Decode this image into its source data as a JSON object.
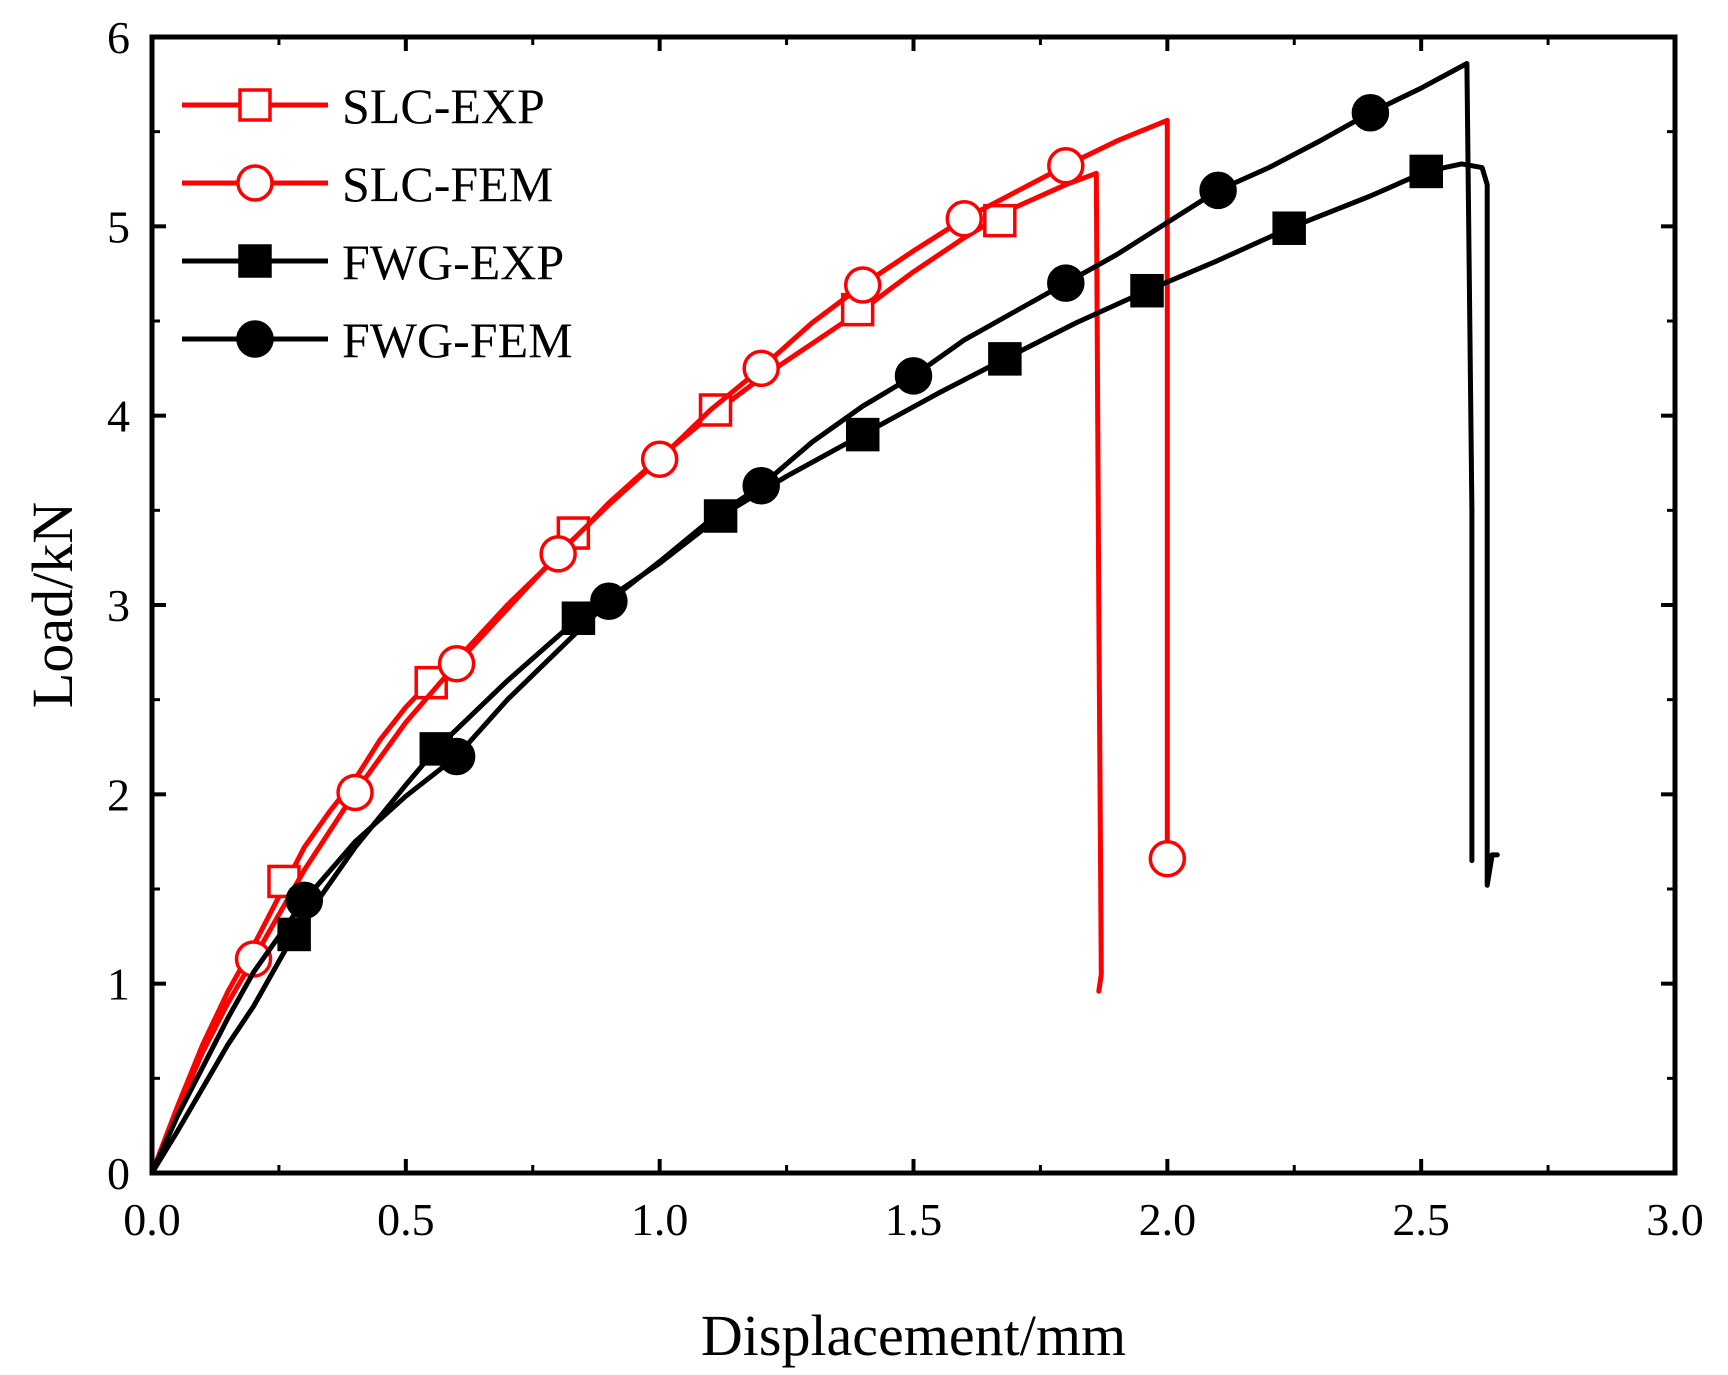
{
  "chart_data": {
    "type": "line",
    "title": "",
    "xlabel": "Displacement/mm",
    "ylabel": "Load/kN",
    "xlim": [
      0,
      3.0
    ],
    "ylim": [
      0,
      6
    ],
    "xticks": [
      0.0,
      0.5,
      1.0,
      1.5,
      2.0,
      2.5,
      3.0
    ],
    "xtick_labels": [
      "0.0",
      "0.5",
      "1.0",
      "1.5",
      "2.0",
      "2.5",
      "3.0"
    ],
    "yticks": [
      0,
      1,
      2,
      3,
      4,
      5,
      6
    ],
    "ytick_labels": [
      "0",
      "1",
      "2",
      "3",
      "4",
      "5",
      "6"
    ],
    "grid": false,
    "legend_position": "top-left",
    "series": [
      {
        "name": "SLC-EXP",
        "color": "#ff0000",
        "marker": "open-square",
        "x": [
          0,
          0.05,
          0.1,
          0.15,
          0.2,
          0.25,
          0.3,
          0.35,
          0.4,
          0.45,
          0.5,
          0.55,
          0.6,
          0.7,
          0.8,
          0.9,
          1.0,
          1.1,
          1.2,
          1.3,
          1.4,
          1.5,
          1.6,
          1.7,
          1.8,
          1.86,
          1.865,
          1.87,
          1.865
        ],
        "y": [
          0,
          0.35,
          0.68,
          0.96,
          1.2,
          1.46,
          1.72,
          1.91,
          2.08,
          2.29,
          2.46,
          2.6,
          2.71,
          3.0,
          3.26,
          3.54,
          3.78,
          4.0,
          4.2,
          4.38,
          4.56,
          4.76,
          4.94,
          5.1,
          5.22,
          5.28,
          3.0,
          1.05,
          0.96
        ],
        "marker_x": [
          0.26,
          0.55,
          0.83,
          1.11,
          1.39,
          1.67
        ],
        "marker_y": [
          1.54,
          2.59,
          3.38,
          4.03,
          4.56,
          5.03
        ]
      },
      {
        "name": "SLC-FEM",
        "color": "#ff0000",
        "marker": "open-circle",
        "x": [
          0,
          0.05,
          0.1,
          0.15,
          0.2,
          0.3,
          0.4,
          0.5,
          0.6,
          0.7,
          0.8,
          0.9,
          1.0,
          1.1,
          1.2,
          1.3,
          1.4,
          1.5,
          1.6,
          1.7,
          1.8,
          1.9,
          2.0,
          2.0,
          2.0
        ],
        "y": [
          0,
          0.33,
          0.64,
          0.9,
          1.13,
          1.6,
          2.01,
          2.38,
          2.69,
          2.98,
          3.27,
          3.53,
          3.77,
          4.03,
          4.25,
          4.49,
          4.69,
          4.87,
          5.04,
          5.18,
          5.32,
          5.45,
          5.56,
          2.8,
          1.66
        ],
        "marker_x": [
          0.2,
          0.4,
          0.6,
          0.8,
          1.0,
          1.2,
          1.4,
          1.6,
          1.8,
          2.0
        ],
        "marker_y": [
          1.13,
          2.01,
          2.69,
          3.27,
          3.77,
          4.25,
          4.69,
          5.04,
          5.32,
          1.66
        ]
      },
      {
        "name": "FWG-EXP",
        "color": "#000000",
        "marker": "filled-square",
        "x": [
          0,
          0.05,
          0.1,
          0.15,
          0.2,
          0.28,
          0.4,
          0.5,
          0.56,
          0.7,
          0.84,
          1.0,
          1.12,
          1.25,
          1.4,
          1.55,
          1.68,
          1.82,
          1.96,
          2.1,
          2.24,
          2.4,
          2.51,
          2.58,
          2.62,
          2.63,
          2.63,
          2.64,
          2.65
        ],
        "y": [
          0,
          0.22,
          0.45,
          0.68,
          0.88,
          1.26,
          1.72,
          2.05,
          2.24,
          2.6,
          2.93,
          3.22,
          3.47,
          3.68,
          3.9,
          4.12,
          4.3,
          4.49,
          4.66,
          4.82,
          4.99,
          5.16,
          5.29,
          5.33,
          5.31,
          5.22,
          1.52,
          1.68,
          1.68
        ],
        "marker_x": [
          0.28,
          0.56,
          0.84,
          1.12,
          1.4,
          1.68,
          1.96,
          2.24,
          2.51
        ],
        "marker_y": [
          1.26,
          2.24,
          2.93,
          3.47,
          3.9,
          4.3,
          4.66,
          4.99,
          5.29
        ]
      },
      {
        "name": "FWG-FEM",
        "color": "#000000",
        "marker": "filled-circle",
        "x": [
          0,
          0.05,
          0.1,
          0.15,
          0.2,
          0.3,
          0.4,
          0.5,
          0.6,
          0.7,
          0.8,
          0.9,
          1.0,
          1.1,
          1.2,
          1.3,
          1.4,
          1.5,
          1.6,
          1.7,
          1.8,
          1.9,
          2.0,
          2.1,
          2.2,
          2.3,
          2.4,
          2.5,
          2.59,
          2.6,
          2.6
        ],
        "y": [
          0,
          0.3,
          0.56,
          0.82,
          1.06,
          1.44,
          1.75,
          1.99,
          2.2,
          2.5,
          2.76,
          3.02,
          3.23,
          3.45,
          3.63,
          3.86,
          4.05,
          4.21,
          4.4,
          4.55,
          4.7,
          4.85,
          5.02,
          5.19,
          5.31,
          5.45,
          5.6,
          5.73,
          5.86,
          3.5,
          1.65
        ],
        "marker_x": [
          0.3,
          0.6,
          0.9,
          1.2,
          1.5,
          1.8,
          2.1,
          2.4
        ],
        "marker_y": [
          1.44,
          2.2,
          3.02,
          3.63,
          4.21,
          4.7,
          5.19,
          5.6
        ]
      }
    ]
  }
}
